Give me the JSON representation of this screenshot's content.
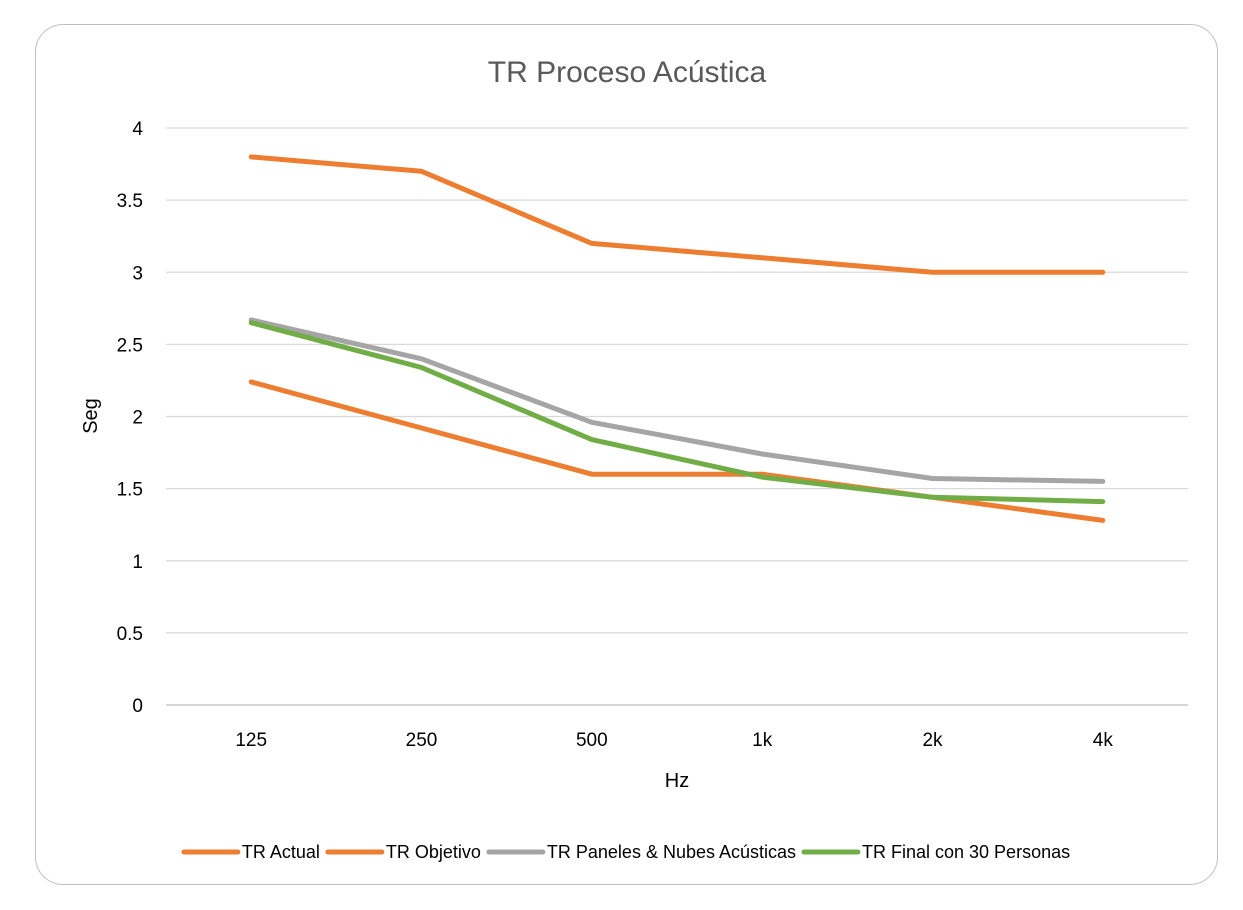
{
  "chart_data": {
    "type": "line",
    "title": "TR Proceso Acústica",
    "xlabel": "Hz",
    "ylabel": "Seg",
    "categories": [
      "125",
      "250",
      "500",
      "1k",
      "2k",
      "4k"
    ],
    "y_ticks": [
      "0",
      "0.5",
      "1",
      "1.5",
      "2",
      "2.5",
      "3",
      "3.5",
      "4"
    ],
    "ylim": [
      0,
      4
    ],
    "grid": "horizontal",
    "legend_position": "bottom",
    "series": [
      {
        "name": "TR Actual",
        "color": "#ED7D31",
        "values": [
          3.8,
          3.7,
          3.2,
          3.1,
          3.0,
          3.0
        ]
      },
      {
        "name": "TR Objetivo",
        "color": "#ED7D31",
        "values": [
          2.24,
          1.92,
          1.6,
          1.6,
          1.44,
          1.28
        ]
      },
      {
        "name": "TR Paneles & Nubes Acústicas",
        "color": "#A5A5A5",
        "values": [
          2.67,
          2.4,
          1.96,
          1.74,
          1.57,
          1.55
        ]
      },
      {
        "name": "TR Final con 30 Personas",
        "color": "#70AD47",
        "values": [
          2.65,
          2.34,
          1.84,
          1.58,
          1.44,
          1.41
        ]
      }
    ]
  }
}
